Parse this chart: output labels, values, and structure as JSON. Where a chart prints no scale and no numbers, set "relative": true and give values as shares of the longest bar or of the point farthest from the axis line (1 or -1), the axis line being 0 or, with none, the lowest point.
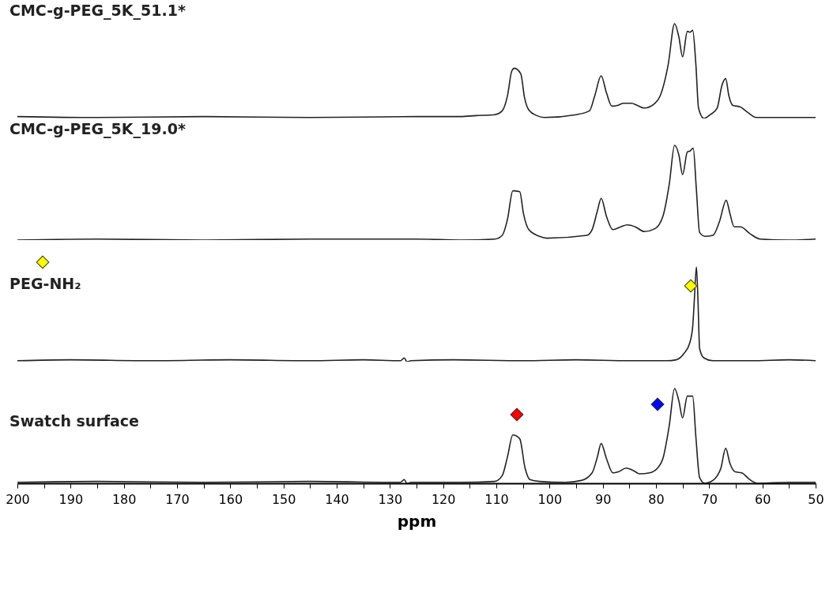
{
  "chart_data": [
    {
      "type": "line",
      "relative": true,
      "xlim": [
        200,
        50
      ],
      "tick_labels": false,
      "series": [
        {
          "name": "CMC-g-PEG_5K_51.1*",
          "color": "#222222",
          "x": [
            200,
            185,
            165,
            145,
            125,
            116.8,
            113.8,
            110.3,
            108.9,
            107.9,
            107.1,
            106.6,
            105.4,
            104.7,
            103.9,
            102.4,
            101.0,
            95.0,
            92.5,
            91.5,
            90.3,
            89.3,
            88.3,
            87.1,
            86.1,
            84.6,
            83.6,
            82.2,
            80.2,
            79.2,
            77.7,
            76.5,
            75.7,
            75.0,
            74.1,
            73.6,
            73.1,
            72.5,
            72.0,
            71.0,
            69.8,
            68.5,
            67.6,
            66.9,
            66.3,
            65.6,
            64.1,
            62.9,
            61.1,
            55,
            50
          ],
          "values": [
            0.02,
            0.01,
            0.02,
            0.01,
            0.02,
            0.02,
            0.03,
            0.04,
            0.08,
            0.24,
            0.5,
            0.53,
            0.47,
            0.22,
            0.09,
            0.03,
            0.01,
            0.04,
            0.08,
            0.24,
            0.45,
            0.27,
            0.13,
            0.14,
            0.16,
            0.16,
            0.14,
            0.11,
            0.16,
            0.24,
            0.57,
            1,
            0.86,
            0.65,
            0.92,
            0.91,
            0.93,
            0.57,
            0.11,
            0,
            0.04,
            0.11,
            0.35,
            0.42,
            0.24,
            0.14,
            0.12,
            0.07,
            0.01,
            0.01,
            0.01
          ]
        }
      ]
    },
    {
      "type": "line",
      "relative": true,
      "xlim": [
        200,
        50
      ],
      "tick_labels": false,
      "series": [
        {
          "name": "CMC-g-PEG_5K_19.0*",
          "color": "#222222",
          "x": [
            200,
            185,
            165,
            145,
            125,
            116.8,
            110.3,
            108.9,
            107.9,
            106.9,
            105.6,
            104.9,
            103.9,
            101.9,
            100.5,
            93.0,
            92.0,
            91.0,
            90.3,
            89.3,
            88.1,
            86.6,
            85.4,
            83.9,
            82.2,
            80.2,
            78.7,
            77.5,
            76.5,
            75.7,
            75.0,
            74.1,
            73.6,
            73.0,
            72.4,
            71.8,
            70.8,
            69.3,
            68.1,
            66.8,
            66.1,
            65.3,
            64.1,
            62.4,
            60.4,
            55,
            50
          ],
          "values": [
            0,
            0.01,
            0,
            0.01,
            0.01,
            0,
            0.01,
            0.05,
            0.22,
            0.52,
            0.51,
            0.28,
            0.11,
            0.04,
            0.02,
            0.05,
            0.11,
            0.31,
            0.44,
            0.25,
            0.11,
            0.14,
            0.16,
            0.14,
            0.09,
            0.12,
            0.25,
            0.59,
            1,
            0.9,
            0.69,
            0.93,
            0.94,
            0.97,
            0.53,
            0.08,
            0.04,
            0.05,
            0.19,
            0.42,
            0.28,
            0.14,
            0.14,
            0.07,
            0.01,
            0,
            0.01
          ]
        }
      ]
    },
    {
      "type": "line",
      "relative": true,
      "xlim": [
        200,
        50
      ],
      "tick_labels": false,
      "series": [
        {
          "name": "PEG-NH₂",
          "color": "#222222",
          "x": [
            200,
            190,
            175,
            160,
            145,
            135,
            128,
            127.3,
            126.8,
            126,
            118,
            105,
            95,
            85,
            78,
            76.2,
            74.7,
            73.7,
            73.1,
            72.8,
            72.4,
            72.1,
            71.8,
            71.0,
            69.3,
            62,
            55,
            50
          ],
          "values": [
            0.01,
            0.02,
            0.01,
            0.02,
            0.01,
            0.02,
            0.01,
            0.04,
            0,
            0.01,
            0.02,
            0.01,
            0.02,
            0.01,
            0.01,
            0.02,
            0.09,
            0.19,
            0.37,
            0.64,
            1,
            0.64,
            0.14,
            0.04,
            0.01,
            0.01,
            0.02,
            0.01
          ]
        }
      ]
    },
    {
      "type": "line",
      "relative": true,
      "xlim": [
        200,
        50
      ],
      "xticks": [
        200,
        {
          "value": 195,
          "label": null
        },
        190,
        {
          "value": 185,
          "label": null
        },
        180,
        {
          "value": 175,
          "label": null
        },
        170,
        {
          "value": 165,
          "label": null
        },
        160,
        {
          "value": 155,
          "label": null
        },
        150,
        {
          "value": 145,
          "label": null
        },
        140,
        {
          "value": 135,
          "label": null
        },
        130,
        {
          "value": 125,
          "label": null
        },
        120,
        {
          "value": 115,
          "label": null
        },
        110,
        {
          "value": 105,
          "label": null
        },
        100,
        {
          "value": 95,
          "label": null
        },
        90,
        {
          "value": 85,
          "label": null
        },
        80,
        {
          "value": 75,
          "label": null
        },
        70,
        {
          "value": 65,
          "label": null
        },
        60,
        {
          "value": 55,
          "label": null
        },
        50
      ],
      "tick_labels": "x",
      "xlabel": "ppm",
      "series": [
        {
          "name": "Swatch surface",
          "color": "#222222",
          "x": [
            200,
            185,
            165,
            145,
            128,
            127.3,
            126.8,
            126,
            116.8,
            110.3,
            108.9,
            107.9,
            106.9,
            105.6,
            104.6,
            103.7,
            101.9,
            97.0,
            94.0,
            92.0,
            91.0,
            90.3,
            89.3,
            88.1,
            87.1,
            85.6,
            84.1,
            83.1,
            81.2,
            79.7,
            78.7,
            77.5,
            76.5,
            75.7,
            75.0,
            74.1,
            73.1,
            72.5,
            71.8,
            70.8,
            69.3,
            67.8,
            66.9,
            66.1,
            65.1,
            63.9,
            62.4,
            60.9,
            55,
            50
          ],
          "values": [
            0.01,
            0.02,
            0.01,
            0.02,
            0.01,
            0.04,
            0,
            0.01,
            0.01,
            0.02,
            0.08,
            0.28,
            0.51,
            0.47,
            0.16,
            0.04,
            0.02,
            0.01,
            0.03,
            0.11,
            0.28,
            0.42,
            0.26,
            0.11,
            0.12,
            0.16,
            0.13,
            0.1,
            0.11,
            0.16,
            0.26,
            0.61,
            1,
            0.87,
            0.69,
            0.92,
            0.92,
            0.49,
            0.06,
            0,
            0.03,
            0.16,
            0.37,
            0.21,
            0.12,
            0.11,
            0.04,
            0,
            0.01,
            0.01
          ]
        }
      ]
    }
  ]
}
